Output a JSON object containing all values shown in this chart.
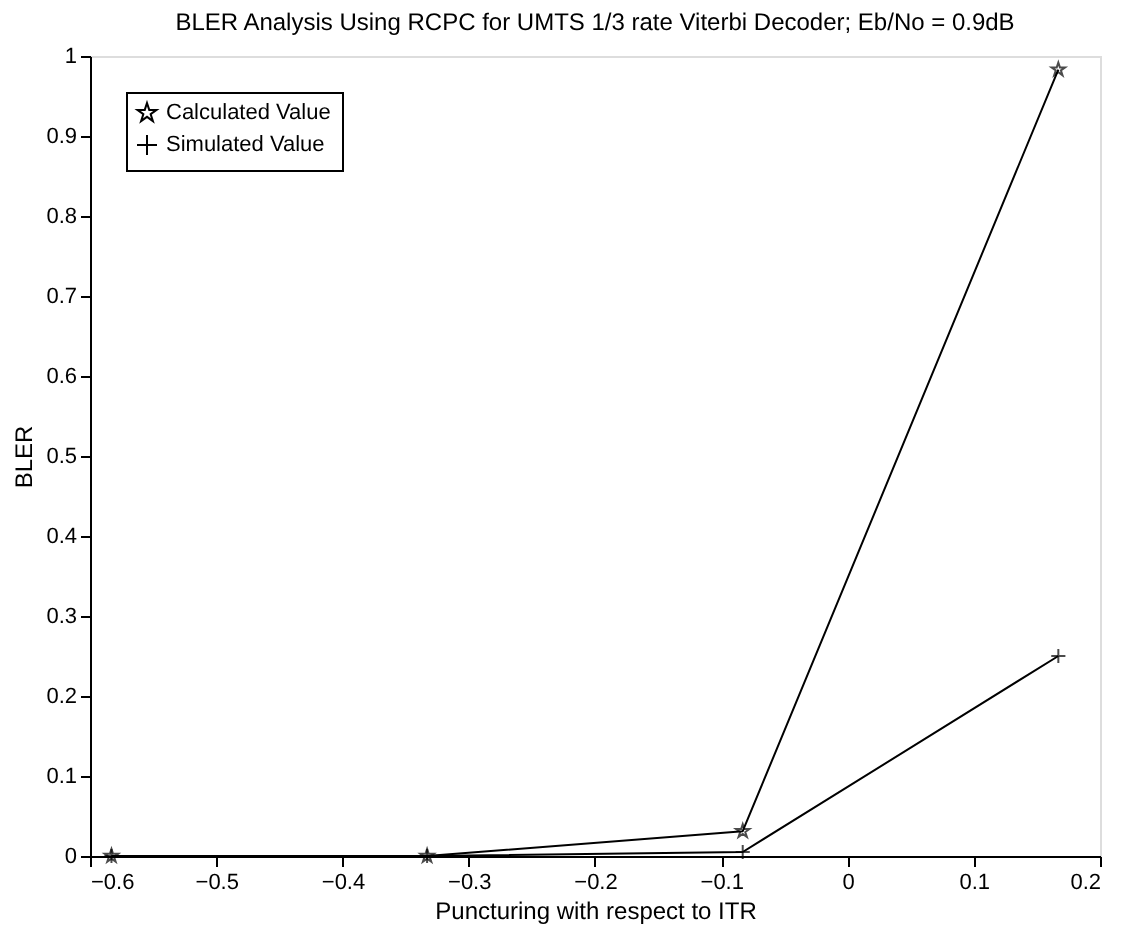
{
  "chart_data": {
    "type": "line",
    "title": "BLER Analysis Using RCPC for UMTS 1/3 rate Viterbi Decoder; Eb/No = 0.9dB",
    "xlabel": "Puncturing with respect to ITR",
    "ylabel": "BLER",
    "x": [
      -0.583,
      -0.333,
      -0.083,
      0.167
    ],
    "series": [
      {
        "name": "Calculated Value",
        "color": "#000000",
        "marker": "star",
        "values": [
          0,
          0,
          0.031,
          0.983
        ]
      },
      {
        "name": "Simulated Value",
        "color": "#000000",
        "marker": "cross",
        "values": [
          0,
          0,
          0.005,
          0.25
        ]
      }
    ],
    "xlim": [
      -0.6,
      0.2
    ],
    "xticks": [
      {
        "value": -0.6,
        "label": "−0.6"
      },
      {
        "value": -0.5,
        "label": "−0.5"
      },
      {
        "value": -0.4,
        "label": "−0.4"
      },
      {
        "value": -0.3,
        "label": "−0.3"
      },
      {
        "value": -0.2,
        "label": "−0.2"
      },
      {
        "value": -0.1,
        "label": "−0.1"
      },
      0,
      0.1,
      0.2
    ],
    "ylim": [
      0,
      1
    ],
    "yticks": [
      0,
      0.1,
      0.2,
      0.3,
      0.4,
      0.5,
      0.6,
      0.7,
      0.8,
      0.9,
      1
    ],
    "grid": false,
    "legend": "top left",
    "line_style": "solid"
  }
}
